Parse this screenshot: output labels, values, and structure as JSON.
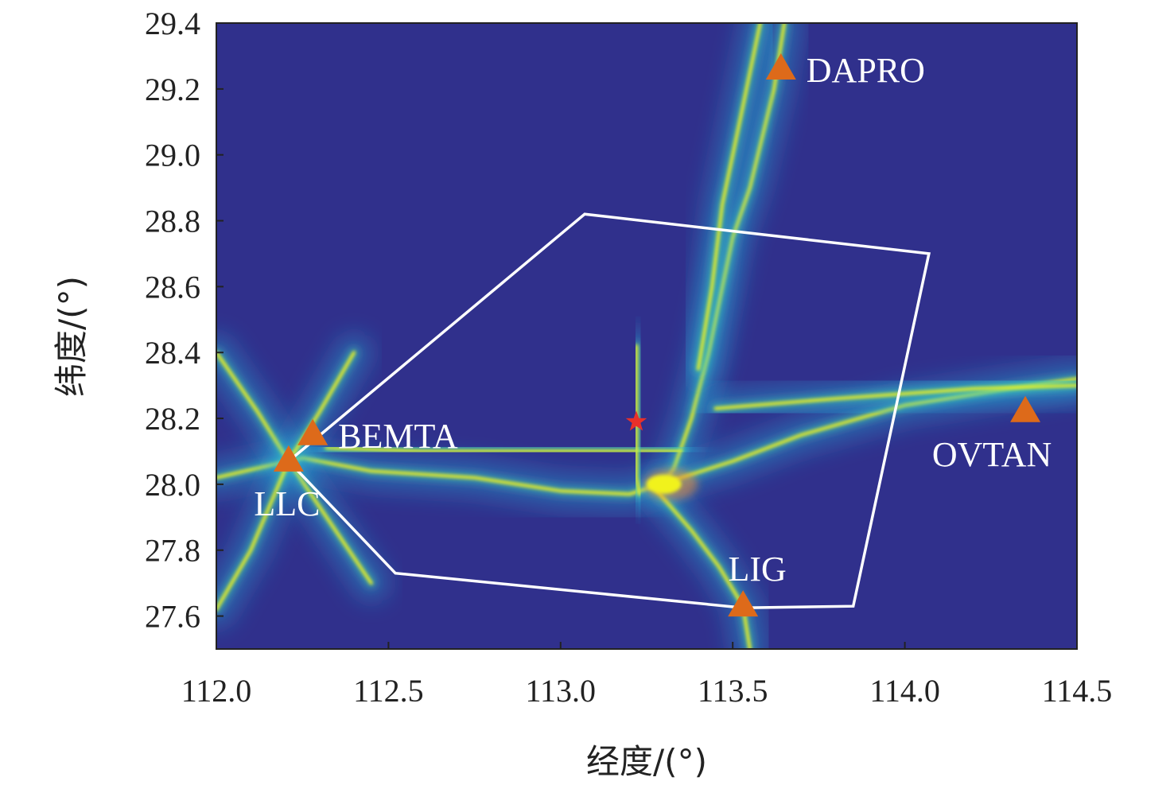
{
  "chart_data": {
    "type": "heatmap",
    "title": "",
    "xlabel": "经度/(°)",
    "ylabel": "纬度/(°)",
    "xlim": [
      112.0,
      114.5
    ],
    "ylim": [
      27.5,
      29.4
    ],
    "x_ticks": [
      "112.0",
      "112.5",
      "113.0",
      "113.5",
      "114.0",
      "114.5"
    ],
    "y_ticks": [
      "27.6",
      "27.8",
      "28.0",
      "28.2",
      "28.4",
      "28.6",
      "28.8",
      "29.0",
      "29.2",
      "29.4"
    ],
    "colors": {
      "background": "#30308c",
      "ridge": "#f1f21c",
      "ridge_glow": "#2fb9e3",
      "hot": "#ff8a2b",
      "station": "#dd6a1a",
      "boundary": "#ffffff",
      "epicenter": "#e8302a"
    },
    "stations": [
      {
        "name": "DAPRO",
        "lon": 113.64,
        "lat": 29.26,
        "label_pos": "right"
      },
      {
        "name": "BEMTA",
        "lon": 112.28,
        "lat": 28.15,
        "label_pos": "right"
      },
      {
        "name": "LLC",
        "lon": 112.21,
        "lat": 28.07,
        "label_pos": "bottom"
      },
      {
        "name": "OVTAN",
        "lon": 114.35,
        "lat": 28.22,
        "label_pos": "bottom"
      },
      {
        "name": "LIG",
        "lon": 113.53,
        "lat": 27.63,
        "label_pos": "top"
      }
    ],
    "epicenter": {
      "lon": 113.22,
      "lat": 28.19
    },
    "boundary_polygon": [
      [
        112.21,
        28.07
      ],
      [
        113.07,
        28.82
      ],
      [
        114.07,
        28.7
      ],
      [
        113.85,
        27.63
      ],
      [
        113.53,
        27.625
      ],
      [
        112.52,
        27.73
      ]
    ],
    "ridges": [
      {
        "id": "ridge-north-south",
        "points": [
          [
            113.65,
            29.4
          ],
          [
            113.62,
            29.2
          ],
          [
            113.55,
            28.9
          ],
          [
            113.5,
            28.75
          ],
          [
            113.47,
            28.6
          ],
          [
            113.43,
            28.4
          ],
          [
            113.38,
            28.2
          ],
          [
            113.33,
            28.05
          ],
          [
            113.3,
            28.0
          ]
        ]
      },
      {
        "id": "ridge-north-secondary",
        "points": [
          [
            113.58,
            29.4
          ],
          [
            113.52,
            29.1
          ],
          [
            113.47,
            28.85
          ],
          [
            113.44,
            28.6
          ],
          [
            113.4,
            28.35
          ]
        ]
      },
      {
        "id": "ridge-west-east",
        "points": [
          [
            112.0,
            28.02
          ],
          [
            112.25,
            28.08
          ],
          [
            112.45,
            28.04
          ],
          [
            112.75,
            28.02
          ],
          [
            113.0,
            27.98
          ],
          [
            113.2,
            27.97
          ],
          [
            113.35,
            28.02
          ],
          [
            113.5,
            28.07
          ],
          [
            113.7,
            28.15
          ],
          [
            114.0,
            28.24
          ],
          [
            114.3,
            28.29
          ],
          [
            114.5,
            28.32
          ]
        ]
      },
      {
        "id": "ridge-bemta",
        "points": [
          [
            112.32,
            28.11
          ],
          [
            112.6,
            28.1
          ],
          [
            112.9,
            28.1
          ],
          [
            113.1,
            28.1
          ],
          [
            113.35,
            28.1
          ]
        ]
      },
      {
        "id": "ridge-llc-diagonal",
        "points": [
          [
            112.0,
            28.4
          ],
          [
            112.12,
            28.22
          ],
          [
            112.21,
            28.07
          ],
          [
            112.32,
            27.9
          ],
          [
            112.45,
            27.7
          ]
        ]
      },
      {
        "id": "ridge-llc-second",
        "points": [
          [
            112.0,
            27.62
          ],
          [
            112.1,
            27.8
          ],
          [
            112.21,
            28.07
          ],
          [
            112.3,
            28.22
          ],
          [
            112.4,
            28.4
          ]
        ]
      },
      {
        "id": "ridge-lig",
        "points": [
          [
            113.28,
            27.98
          ],
          [
            113.38,
            27.86
          ],
          [
            113.46,
            27.75
          ],
          [
            113.53,
            27.63
          ],
          [
            113.55,
            27.5
          ]
        ]
      },
      {
        "id": "ridge-east-upper",
        "points": [
          [
            113.45,
            28.23
          ],
          [
            113.8,
            28.26
          ],
          [
            114.2,
            28.29
          ],
          [
            114.5,
            28.3
          ]
        ]
      },
      {
        "id": "ridge-center-vertical",
        "points": [
          [
            113.22,
            28.42
          ],
          [
            113.22,
            28.3
          ],
          [
            113.22,
            28.15
          ],
          [
            113.22,
            28.02
          ],
          [
            113.23,
            27.97
          ]
        ]
      }
    ]
  }
}
